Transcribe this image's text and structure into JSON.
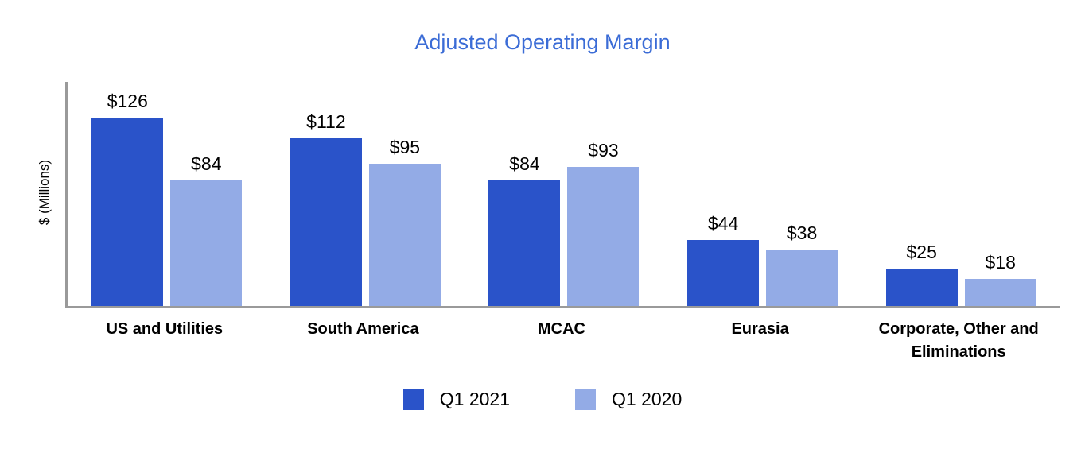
{
  "chart_data": {
    "type": "bar",
    "title": "Adjusted Operating Margin",
    "xlabel": "",
    "ylabel": "$ (Millions)",
    "ylim": [
      0,
      150
    ],
    "grid": false,
    "legend_position": "bottom",
    "value_prefix": "$",
    "categories": [
      "US and Utilities",
      "South America",
      "MCAC",
      "Eurasia",
      "Corporate, Other and Eliminations"
    ],
    "series": [
      {
        "name": "Q1 2021",
        "color": "#2a53c9",
        "values": [
          126,
          112,
          84,
          44,
          25
        ]
      },
      {
        "name": "Q1 2020",
        "color": "#93abe6",
        "values": [
          84,
          95,
          93,
          38,
          18
        ]
      }
    ],
    "colors": {
      "title": "#3b6cd6",
      "axis": "#9a9a9a",
      "text": "#000000"
    }
  }
}
